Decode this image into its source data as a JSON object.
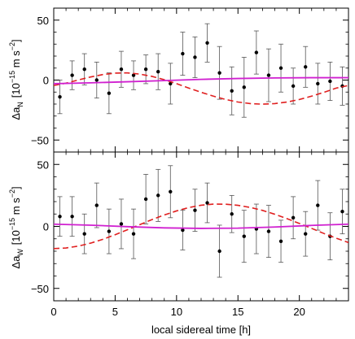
{
  "chart_data": [
    {
      "type": "scatter",
      "panel": "top",
      "ylabel": {
        "prefix": "Δa",
        "sub": "N",
        "units": "[10",
        "exp": "−15",
        "units2": " m s",
        "exp2": "−2",
        "close": "]"
      },
      "xlim": [
        0,
        24
      ],
      "ylim": [
        -60,
        60
      ],
      "yticks": [
        -50,
        0,
        50
      ],
      "ytick_labels": [
        "−50",
        "0",
        "50"
      ],
      "series": [
        {
          "style": "points-with-errorbars",
          "color": "#000000",
          "x": [
            0.5,
            1.5,
            2.5,
            3.5,
            4.5,
            5.5,
            6.5,
            7.5,
            8.5,
            9.5,
            10.5,
            11.5,
            12.5,
            13.5,
            14.5,
            15.5,
            16.5,
            17.5,
            18.5,
            19.5,
            20.5,
            21.5,
            22.5,
            23.5
          ],
          "y": [
            -14,
            4,
            9,
            0,
            -11,
            9,
            4,
            9,
            7,
            -3,
            22,
            19,
            31,
            6,
            -9,
            -6,
            23,
            4,
            10,
            -5,
            11,
            -3,
            -1,
            -5
          ],
          "err": [
            14,
            12,
            13,
            15,
            17,
            15,
            12,
            12,
            15,
            17,
            18,
            17,
            16,
            22,
            20,
            25,
            18,
            22,
            20,
            15,
            17,
            17,
            16,
            16
          ]
        },
        {
          "style": "dashed-line",
          "color": "#e02020",
          "x": [
            0,
            1,
            2,
            3,
            4,
            5,
            6,
            7,
            8,
            9,
            10,
            11,
            12,
            13,
            14,
            15,
            16,
            17,
            18,
            19,
            20,
            21,
            22,
            23,
            24
          ],
          "y": [
            -4.5,
            -2.6,
            0.1,
            2.6,
            4.6,
            5.8,
            6.0,
            5.0,
            3.1,
            0.3,
            -3.0,
            -6.7,
            -10.2,
            -13.4,
            -16.2,
            -18.3,
            -19.6,
            -20.1,
            -19.6,
            -18.3,
            -16.2,
            -13.4,
            -10.2,
            -6.7,
            -4.5
          ]
        },
        {
          "style": "solid-line",
          "color": "#d020d0",
          "x": [
            0,
            3,
            6,
            9,
            12,
            15,
            18,
            21,
            24
          ],
          "y": [
            -3,
            -2.3,
            -1.4,
            -0.4,
            0.6,
            1.3,
            1.8,
            2.0,
            2.0
          ]
        }
      ]
    },
    {
      "type": "scatter",
      "panel": "bottom",
      "ylabel": {
        "prefix": "Δa",
        "sub": "W",
        "units": "[10",
        "exp": "−15",
        "units2": " m s",
        "exp2": "−2",
        "close": "]"
      },
      "xlabel": "local sidereal time [h]",
      "xlim": [
        0,
        24
      ],
      "ylim": [
        -60,
        60
      ],
      "xticks": [
        0,
        5,
        10,
        15,
        20
      ],
      "xtick_labels": [
        "0",
        "5",
        "10",
        "15",
        "20"
      ],
      "yticks": [
        -50,
        0,
        50
      ],
      "ytick_labels": [
        "−50",
        "0",
        "50"
      ],
      "series": [
        {
          "style": "points-with-errorbars",
          "color": "#000000",
          "x": [
            0.5,
            1.5,
            2.5,
            3.5,
            4.5,
            5.5,
            6.5,
            7.5,
            8.5,
            9.5,
            10.5,
            11.5,
            12.5,
            13.5,
            14.5,
            15.5,
            16.5,
            17.5,
            18.5,
            19.5,
            20.5,
            21.5,
            22.5,
            23.5
          ],
          "y": [
            8,
            8,
            -6,
            17,
            -4,
            2,
            -6,
            22,
            25,
            28,
            -3,
            13,
            19,
            -20,
            10,
            -8,
            -2,
            -4,
            -12,
            7,
            -6,
            17,
            -8,
            12
          ],
          "err": [
            16,
            16,
            16,
            18,
            18,
            20,
            20,
            20,
            21,
            21,
            16,
            17,
            16,
            21,
            15,
            21,
            20,
            21,
            17,
            17,
            18,
            20,
            19,
            18
          ]
        },
        {
          "style": "dashed-line",
          "color": "#e02020",
          "x": [
            0,
            1,
            2,
            3,
            4,
            5,
            6,
            7,
            8,
            9,
            10,
            11,
            12,
            13,
            14,
            15,
            16,
            17,
            18,
            19,
            20,
            21,
            22,
            23,
            24
          ],
          "y": [
            -17.9,
            -17.4,
            -15.9,
            -13.5,
            -10.4,
            -6.7,
            -2.7,
            1.4,
            5.5,
            9.2,
            12.5,
            15.2,
            17.1,
            18.0,
            17.9,
            17.0,
            15.3,
            12.9,
            9.8,
            6.2,
            2.4,
            -1.6,
            -5.7,
            -9.5,
            -13.0
          ]
        },
        {
          "style": "solid-line",
          "color": "#d020d0",
          "x": [
            0,
            3,
            6,
            9,
            12,
            15,
            18,
            21,
            24
          ],
          "y": [
            1.8,
            1.0,
            -0.2,
            -1.2,
            -1.6,
            -1.4,
            -0.5,
            0.8,
            1.8
          ]
        }
      ]
    }
  ]
}
